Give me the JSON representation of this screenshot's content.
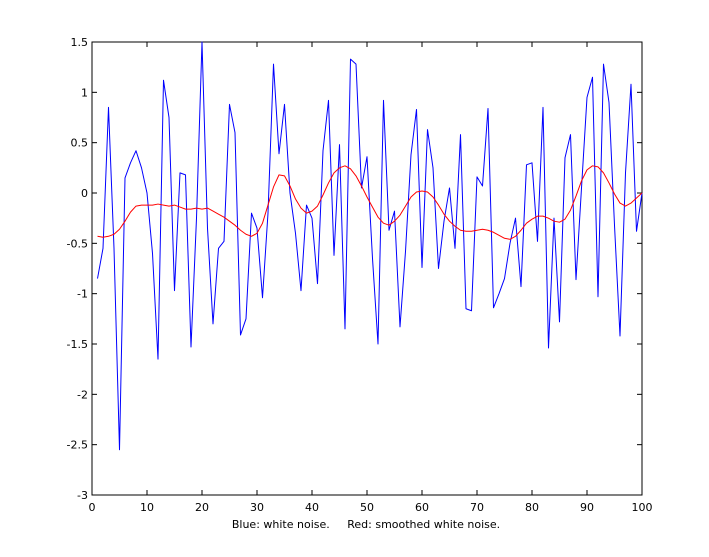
{
  "chart_data": {
    "type": "line",
    "xlabel": "Blue: white noise.     Red: smoothed white noise.",
    "xlim": [
      0,
      100
    ],
    "ylim": [
      -3,
      1.5
    ],
    "xticks": [
      0,
      10,
      20,
      30,
      40,
      50,
      60,
      70,
      80,
      90,
      100
    ],
    "yticks": [
      -3,
      -2.5,
      -2,
      -1.5,
      -1,
      -0.5,
      0,
      0.5,
      1,
      1.5
    ],
    "xtick_labels": [
      "0",
      "10",
      "20",
      "30",
      "40",
      "50",
      "60",
      "70",
      "80",
      "90",
      "100"
    ],
    "ytick_labels": [
      "-3",
      "-2.5",
      "-2",
      "-1.5",
      "-1",
      "-0.5",
      "0",
      "0.5",
      "1",
      "1.5"
    ],
    "grid": false,
    "legend": "none",
    "series": [
      {
        "color": "#0000ff",
        "x": [
          1,
          2,
          3,
          4,
          5,
          6,
          7,
          8,
          9,
          10,
          11,
          12,
          13,
          14,
          15,
          16,
          17,
          18,
          19,
          20,
          21,
          22,
          23,
          24,
          25,
          26,
          27,
          28,
          29,
          30,
          31,
          32,
          33,
          34,
          35,
          36,
          37,
          38,
          39,
          40,
          41,
          42,
          43,
          44,
          45,
          46,
          47,
          48,
          49,
          50,
          51,
          52,
          53,
          54,
          55,
          56,
          57,
          58,
          59,
          60,
          61,
          62,
          63,
          64,
          65,
          66,
          67,
          68,
          69,
          70,
          71,
          72,
          73,
          74,
          75,
          76,
          77,
          78,
          79,
          80,
          81,
          82,
          83,
          84,
          85,
          86,
          87,
          88,
          89,
          90,
          91,
          92,
          93,
          94,
          95,
          96,
          97,
          98,
          99,
          100
        ],
        "y": [
          -0.85,
          -0.55,
          0.85,
          -0.55,
          -2.55,
          0.15,
          0.3,
          0.42,
          0.25,
          0.0,
          -0.6,
          -1.65,
          1.12,
          0.75,
          -0.97,
          0.2,
          0.18,
          -1.53,
          -0.25,
          1.5,
          -0.35,
          -1.3,
          -0.55,
          -0.48,
          0.88,
          0.6,
          -1.41,
          -1.25,
          -0.2,
          -0.35,
          -1.04,
          -0.2,
          1.28,
          0.39,
          0.88,
          0.0,
          -0.4,
          -0.97,
          -0.12,
          -0.25,
          -0.9,
          0.42,
          0.92,
          -0.62,
          0.48,
          -1.35,
          1.33,
          1.28,
          0.05,
          0.36,
          -0.65,
          -1.5,
          0.92,
          -0.37,
          -0.18,
          -1.33,
          -0.58,
          0.38,
          0.83,
          -0.74,
          0.63,
          0.25,
          -0.75,
          -0.28,
          0.05,
          -0.55,
          0.58,
          -1.15,
          -1.17,
          0.16,
          0.07,
          0.84,
          -1.14,
          -1.0,
          -0.85,
          -0.5,
          -0.25,
          -0.93,
          0.28,
          0.3,
          -0.48,
          0.85,
          -1.54,
          -0.25,
          -1.28,
          0.35,
          0.58,
          -0.86,
          0.05,
          0.95,
          1.15,
          -1.03,
          1.28,
          0.9,
          -0.32,
          -1.42,
          0.2,
          1.08,
          -0.38,
          0.0
        ]
      },
      {
        "color": "#ff0000",
        "x": [
          1,
          2,
          3,
          4,
          5,
          6,
          7,
          8,
          9,
          10,
          11,
          12,
          13,
          14,
          15,
          16,
          17,
          18,
          19,
          20,
          21,
          22,
          23,
          24,
          25,
          26,
          27,
          28,
          29,
          30,
          31,
          32,
          33,
          34,
          35,
          36,
          37,
          38,
          39,
          40,
          41,
          42,
          43,
          44,
          45,
          46,
          47,
          48,
          49,
          50,
          51,
          52,
          53,
          54,
          55,
          56,
          57,
          58,
          59,
          60,
          61,
          62,
          63,
          64,
          65,
          66,
          67,
          68,
          69,
          70,
          71,
          72,
          73,
          74,
          75,
          76,
          77,
          78,
          79,
          80,
          81,
          82,
          83,
          84,
          85,
          86,
          87,
          88,
          89,
          90,
          91,
          92,
          93,
          94,
          95,
          96,
          97,
          98,
          99,
          100
        ],
        "y": [
          -0.43,
          -0.44,
          -0.43,
          -0.41,
          -0.36,
          -0.28,
          -0.19,
          -0.13,
          -0.12,
          -0.12,
          -0.12,
          -0.11,
          -0.12,
          -0.13,
          -0.12,
          -0.14,
          -0.16,
          -0.16,
          -0.15,
          -0.16,
          -0.15,
          -0.18,
          -0.21,
          -0.24,
          -0.28,
          -0.32,
          -0.37,
          -0.41,
          -0.43,
          -0.4,
          -0.3,
          -0.12,
          0.06,
          0.18,
          0.17,
          0.07,
          -0.06,
          -0.15,
          -0.2,
          -0.18,
          -0.13,
          -0.02,
          0.1,
          0.2,
          0.25,
          0.27,
          0.24,
          0.17,
          0.07,
          -0.04,
          -0.14,
          -0.24,
          -0.3,
          -0.32,
          -0.28,
          -0.22,
          -0.13,
          -0.04,
          0.01,
          0.02,
          0.01,
          -0.04,
          -0.12,
          -0.21,
          -0.28,
          -0.33,
          -0.37,
          -0.38,
          -0.38,
          -0.37,
          -0.36,
          -0.37,
          -0.39,
          -0.42,
          -0.45,
          -0.46,
          -0.43,
          -0.37,
          -0.3,
          -0.26,
          -0.23,
          -0.23,
          -0.25,
          -0.28,
          -0.29,
          -0.26,
          -0.17,
          -0.03,
          0.12,
          0.23,
          0.27,
          0.26,
          0.2,
          0.1,
          -0.01,
          -0.1,
          -0.13,
          -0.1,
          -0.05,
          0.0
        ]
      }
    ]
  }
}
